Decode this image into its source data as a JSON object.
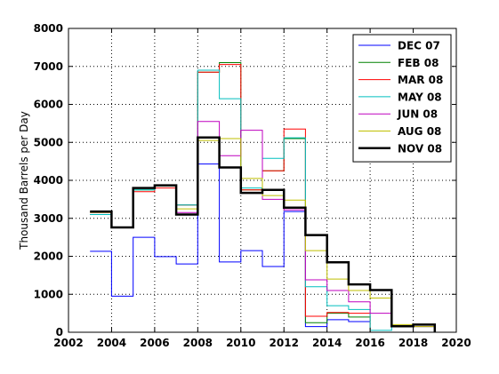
{
  "chart_data": {
    "type": "line",
    "step": true,
    "title": "",
    "xlabel": "",
    "ylabel": "Thousand Barrels per Day",
    "xlim": [
      2002,
      2020
    ],
    "ylim": [
      0,
      8000
    ],
    "xticks": [
      2002,
      2004,
      2006,
      2008,
      2010,
      2012,
      2014,
      2016,
      2018,
      2020
    ],
    "yticks": [
      0,
      1000,
      2000,
      3000,
      4000,
      5000,
      6000,
      7000,
      8000
    ],
    "grid": true,
    "legend_position": "top-right",
    "x": [
      2003,
      2004,
      2005,
      2006,
      2007,
      2008,
      2009,
      2010,
      2011,
      2012,
      2013,
      2014,
      2015,
      2016,
      2017,
      2018,
      2019
    ],
    "series": [
      {
        "name": "DEC 07",
        "color": "#0000ff",
        "width": 1,
        "values": [
          2130,
          950,
          2500,
          1990,
          1800,
          4430,
          1850,
          2150,
          1730,
          3180,
          150,
          330,
          280,
          null,
          null,
          null,
          null
        ]
      },
      {
        "name": "FEB 08",
        "color": "#008000",
        "width": 1,
        "values": [
          3100,
          2750,
          3750,
          3850,
          3350,
          6850,
          7100,
          3750,
          4250,
          5100,
          250,
          500,
          400,
          0,
          null,
          null,
          null
        ]
      },
      {
        "name": "MAR 08",
        "color": "#ff0000",
        "width": 1,
        "values": [
          3100,
          2750,
          3700,
          3800,
          3350,
          6850,
          7050,
          3750,
          4250,
          5350,
          420,
          520,
          500,
          0,
          null,
          null,
          null
        ]
      },
      {
        "name": "MAY 08",
        "color": "#00bfbf",
        "width": 1,
        "values": [
          3100,
          2750,
          3750,
          3850,
          3350,
          6900,
          6150,
          3800,
          4580,
          5120,
          1200,
          700,
          600,
          50,
          150,
          150,
          null
        ]
      },
      {
        "name": "JUN 08",
        "color": "#bf00bf",
        "width": 1,
        "values": [
          3150,
          2750,
          3800,
          3850,
          3150,
          5550,
          4650,
          5320,
          3500,
          3220,
          1380,
          1100,
          800,
          500,
          150,
          150,
          130
        ]
      },
      {
        "name": "AUG 08",
        "color": "#bfbf00",
        "width": 1,
        "values": [
          3150,
          2750,
          3800,
          3850,
          3250,
          5050,
          5100,
          4050,
          3600,
          3480,
          2150,
          1400,
          1100,
          900,
          200,
          150,
          130
        ]
      },
      {
        "name": "NOV 08",
        "color": "#000000",
        "width": 2.5,
        "values": [
          3180,
          2760,
          3800,
          3870,
          3100,
          5130,
          4340,
          3670,
          3750,
          3280,
          2560,
          1840,
          1260,
          1110,
          160,
          200,
          0
        ]
      }
    ]
  }
}
